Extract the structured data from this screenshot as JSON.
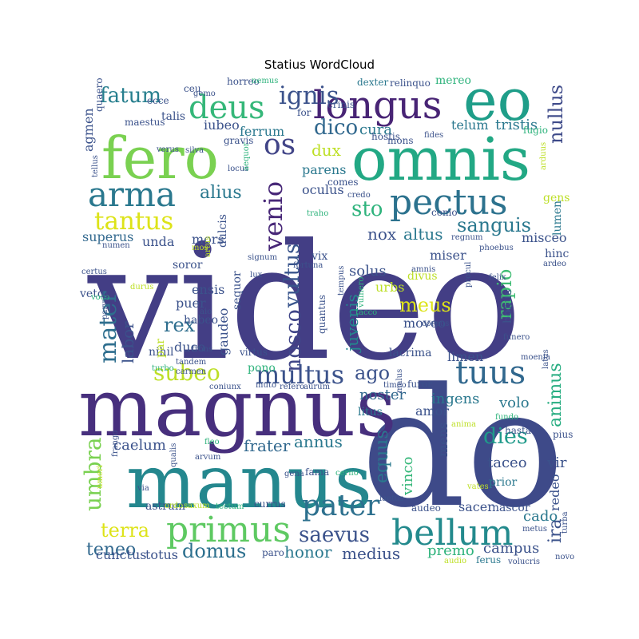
{
  "chart_data": {
    "type": "wordcloud",
    "title": "Statius WordCloud",
    "colormap": "viridis",
    "words": [
      {
        "text": "video",
        "size": 1.0,
        "color": "#433E85"
      },
      {
        "text": "do",
        "size": 0.98,
        "color": "#3E4A89"
      },
      {
        "text": "magnus",
        "size": 0.62,
        "color": "#472F7D"
      },
      {
        "text": "manus",
        "size": 0.58,
        "color": "#24878E"
      },
      {
        "text": "omnis",
        "size": 0.42,
        "color": "#22A884"
      },
      {
        "text": "fero",
        "size": 0.41,
        "color": "#7AD151"
      },
      {
        "text": "eo",
        "size": 0.38,
        "color": "#1F9E89"
      },
      {
        "text": "longus",
        "size": 0.27,
        "color": "#482475"
      },
      {
        "text": "pectus",
        "size": 0.25,
        "color": "#2C728E"
      },
      {
        "text": "primus",
        "size": 0.25,
        "color": "#5EC962"
      },
      {
        "text": "bellum",
        "size": 0.25,
        "color": "#238A8D"
      },
      {
        "text": "arma",
        "size": 0.24,
        "color": "#2A788E"
      },
      {
        "text": "deus",
        "size": 0.23,
        "color": "#35B779"
      },
      {
        "text": "tuus",
        "size": 0.22,
        "color": "#31688E"
      },
      {
        "text": "pater",
        "size": 0.2,
        "color": "#2D708E"
      },
      {
        "text": "multus",
        "size": 0.18,
        "color": "#3B528B"
      },
      {
        "text": "os",
        "size": 0.18,
        "color": "#414487"
      },
      {
        "text": "venio",
        "size": 0.18,
        "color": "#482878"
      },
      {
        "text": "ignis",
        "size": 0.17,
        "color": "#3B528B"
      },
      {
        "text": "mater",
        "size": 0.17,
        "color": "#2E6E8E"
      },
      {
        "text": "tantus",
        "size": 0.17,
        "color": "#DDE318"
      },
      {
        "text": "umbra",
        "size": 0.16,
        "color": "#7AD151"
      },
      {
        "text": "subeo",
        "size": 0.16,
        "color": "#BDDF26"
      },
      {
        "text": "vultus",
        "size": 0.15,
        "color": "#39558C"
      },
      {
        "text": "nosco",
        "size": 0.15,
        "color": "#404688"
      },
      {
        "text": "saevus",
        "size": 0.15,
        "color": "#3B528B"
      },
      {
        "text": "dies",
        "size": 0.15,
        "color": "#1F9A8A"
      },
      {
        "text": "sanguis",
        "size": 0.14,
        "color": "#2A788E"
      },
      {
        "text": "fatum",
        "size": 0.14,
        "color": "#277F8E"
      },
      {
        "text": "domus",
        "size": 0.14,
        "color": "#2D708E"
      },
      {
        "text": "terra",
        "size": 0.14,
        "color": "#DDE318"
      },
      {
        "text": "nullus",
        "size": 0.13,
        "color": "#3E4A89"
      },
      {
        "text": "meus",
        "size": 0.13,
        "color": "#DDE318"
      },
      {
        "text": "rapio",
        "size": 0.13,
        "color": "#3FBC73"
      },
      {
        "text": "ago",
        "size": 0.13,
        "color": "#3B528B"
      },
      {
        "text": "animus",
        "size": 0.13,
        "color": "#27AD81"
      },
      {
        "text": "equus",
        "size": 0.13,
        "color": "#2A788E"
      },
      {
        "text": "rex",
        "size": 0.13,
        "color": "#2E6E8E"
      },
      {
        "text": "teneo",
        "size": 0.13,
        "color": "#31688E"
      },
      {
        "text": "labor",
        "size": 0.12,
        "color": "#3B528B"
      },
      {
        "text": "sto",
        "size": 0.12,
        "color": "#2EB37C"
      },
      {
        "text": "dico",
        "size": 0.12,
        "color": "#31688E"
      },
      {
        "text": "annus",
        "size": 0.12,
        "color": "#2A788E"
      },
      {
        "text": "nox",
        "size": 0.11,
        "color": "#3B528B"
      },
      {
        "text": "altus",
        "size": 0.11,
        "color": "#2A788E"
      },
      {
        "text": "ira",
        "size": 0.11,
        "color": "#3B528B"
      },
      {
        "text": "dux",
        "size": 0.1,
        "color": "#BDDF26"
      },
      {
        "text": "alius",
        "size": 0.1,
        "color": "#2A788E"
      },
      {
        "text": "juvenis",
        "size": 0.1,
        "color": "#24878E"
      },
      {
        "text": "vinco",
        "size": 0.1,
        "color": "#35B779"
      },
      {
        "text": "medius",
        "size": 0.09,
        "color": "#3B528B"
      },
      {
        "text": "honor",
        "size": 0.09,
        "color": "#2A788E"
      },
      {
        "text": "vir",
        "size": 0.09,
        "color": "#3B528B"
      },
      {
        "text": "cura",
        "size": 0.09,
        "color": "#2A788E"
      },
      {
        "text": "volo",
        "size": 0.09,
        "color": "#2A788E"
      },
      {
        "text": "ingens",
        "size": 0.09,
        "color": "#2A788E"
      },
      {
        "text": "noster",
        "size": 0.09,
        "color": "#31688E"
      },
      {
        "text": "frater",
        "size": 0.09,
        "color": "#31688E"
      },
      {
        "text": "taceo",
        "size": 0.09,
        "color": "#3B528B"
      },
      {
        "text": "cado",
        "size": 0.09,
        "color": "#2A788E"
      },
      {
        "text": "caelum",
        "size": 0.09,
        "color": "#3B528B"
      },
      {
        "text": "solus",
        "size": 0.09,
        "color": "#3B528B"
      },
      {
        "text": "mens",
        "size": 0.08,
        "color": "#3B528B"
      },
      {
        "text": "campus",
        "size": 0.08,
        "color": "#3B528B"
      },
      {
        "text": "misceo",
        "size": 0.08,
        "color": "#3B528B"
      },
      {
        "text": "tristis",
        "size": 0.08,
        "color": "#2A788E"
      },
      {
        "text": "ferrum",
        "size": 0.08,
        "color": "#2A788E"
      },
      {
        "text": "iubeo",
        "size": 0.08,
        "color": "#3B528B"
      },
      {
        "text": "mors",
        "size": 0.08,
        "color": "#3B528B"
      },
      {
        "text": "unda",
        "size": 0.08,
        "color": "#3B528B"
      },
      {
        "text": "superus",
        "size": 0.08,
        "color": "#31688E"
      },
      {
        "text": "telum",
        "size": 0.08,
        "color": "#2A788E"
      },
      {
        "text": "amor",
        "size": 0.08,
        "color": "#3B528B"
      },
      {
        "text": "premo",
        "size": 0.08,
        "color": "#2EB37C"
      },
      {
        "text": "totus",
        "size": 0.08,
        "color": "#3B528B"
      },
      {
        "text": "cunctus",
        "size": 0.08,
        "color": "#3B528B"
      },
      {
        "text": "limen",
        "size": 0.08,
        "color": "#3B528B"
      },
      {
        "text": "moveo",
        "size": 0.08,
        "color": "#3B528B"
      },
      {
        "text": "redeo",
        "size": 0.08,
        "color": "#3B528B"
      },
      {
        "text": "miser",
        "size": 0.08,
        "color": "#3B528B"
      },
      {
        "text": "parens",
        "size": 0.08,
        "color": "#2A788E"
      },
      {
        "text": "oculus",
        "size": 0.07,
        "color": "#3B528B"
      },
      {
        "text": "urbs",
        "size": 0.07,
        "color": "#BDDF26"
      },
      {
        "text": "sacer",
        "size": 0.07,
        "color": "#3B528B"
      },
      {
        "text": "nascor",
        "size": 0.07,
        "color": "#3B528B"
      },
      {
        "text": "duco",
        "size": 0.07,
        "color": "#3B528B"
      },
      {
        "text": "puer",
        "size": 0.07,
        "color": "#3B528B"
      },
      {
        "text": "ensis",
        "size": 0.07,
        "color": "#3B528B"
      },
      {
        "text": "gaudeo",
        "size": 0.07,
        "color": "#3B528B"
      },
      {
        "text": "sequor",
        "size": 0.07,
        "color": "#3B528B"
      },
      {
        "text": "agmen",
        "size": 0.07,
        "color": "#3B528B"
      },
      {
        "text": "talis",
        "size": 0.07,
        "color": "#3B528B"
      },
      {
        "text": "gens",
        "size": 0.07,
        "color": "#BDDF26"
      },
      {
        "text": "hinc",
        "size": 0.07,
        "color": "#3B528B"
      },
      {
        "text": "nihil",
        "size": 0.07,
        "color": "#3B528B"
      },
      {
        "text": "lacrima",
        "size": 0.06,
        "color": "#3B528B"
      },
      {
        "text": "par",
        "size": 0.06,
        "color": "#BDDF26"
      },
      {
        "text": "litus",
        "size": 0.06,
        "color": "#2A788E"
      },
      {
        "text": "bonus",
        "size": 0.06,
        "color": "#3B528B"
      },
      {
        "text": "divus",
        "size": 0.06,
        "color": "#BDDF26"
      },
      {
        "text": "vix",
        "size": 0.06,
        "color": "#3B528B"
      },
      {
        "text": "mereo",
        "size": 0.06,
        "color": "#2EB37C"
      },
      {
        "text": "comes",
        "size": 0.06,
        "color": "#3B528B"
      },
      {
        "text": "soror",
        "size": 0.06,
        "color": "#3B528B"
      },
      {
        "text": "veto",
        "size": 0.06,
        "color": "#3B528B"
      },
      {
        "text": "pono",
        "size": 0.06,
        "color": "#2EB37C"
      },
      {
        "text": "prior",
        "size": 0.06,
        "color": "#2A788E"
      },
      {
        "text": "paro",
        "size": 0.06,
        "color": "#3B528B"
      },
      {
        "text": "maestus",
        "size": 0.06,
        "color": "#3B528B"
      },
      {
        "text": "dulcis",
        "size": 0.06,
        "color": "#3B528B"
      },
      {
        "text": "habeo",
        "size": 0.06,
        "color": "#3B528B"
      },
      {
        "text": "crinis",
        "size": 0.06,
        "color": "#3B528B"
      },
      {
        "text": "lumen",
        "size": 0.05,
        "color": "#2A788E"
      },
      {
        "text": "mons",
        "size": 0.05,
        "color": "#3B528B"
      },
      {
        "text": "ceu",
        "size": 0.05,
        "color": "#3B528B"
      },
      {
        "text": "fugio",
        "size": 0.05,
        "color": "#2EB37C"
      },
      {
        "text": "relinquo",
        "size": 0.05,
        "color": "#3B528B"
      },
      {
        "text": "hasta",
        "size": 0.05,
        "color": "#3B528B"
      },
      {
        "text": "furor",
        "size": 0.05,
        "color": "#3B528B"
      },
      {
        "text": "audeo",
        "size": 0.05,
        "color": "#3B528B"
      },
      {
        "text": "currus",
        "size": 0.05,
        "color": "#3B528B"
      },
      {
        "text": "fama",
        "size": 0.05,
        "color": "#3B528B"
      },
      {
        "text": "virtus",
        "size": 0.05,
        "color": "#3B528B"
      },
      {
        "text": "como",
        "size": 0.05,
        "color": "#3B528B"
      },
      {
        "text": "pius",
        "size": 0.05,
        "color": "#3B528B"
      },
      {
        "text": "hostis",
        "size": 0.05,
        "color": "#3B528B"
      },
      {
        "text": "gravis",
        "size": 0.05,
        "color": "#3B528B"
      },
      {
        "text": "horreo",
        "size": 0.05,
        "color": "#3B528B"
      },
      {
        "text": "dexter",
        "size": 0.05,
        "color": "#2A788E"
      },
      {
        "text": "quaero",
        "size": 0.05,
        "color": "#3B528B"
      },
      {
        "text": "for",
        "size": 0.05,
        "color": "#3B528B"
      },
      {
        "text": "ecce",
        "size": 0.05,
        "color": "#3B528B"
      },
      {
        "text": "gemo",
        "size": 0.05,
        "color": "#3B528B"
      },
      {
        "text": "nemus",
        "size": 0.05,
        "color": "#2EB37C"
      },
      {
        "text": "fides",
        "size": 0.05,
        "color": "#3B528B"
      },
      {
        "text": "tellus",
        "size": 0.05,
        "color": "#3B528B"
      },
      {
        "text": "verus",
        "size": 0.05,
        "color": "#3B528B"
      },
      {
        "text": "silva",
        "size": 0.05,
        "color": "#3B528B"
      },
      {
        "text": "locus",
        "size": 0.05,
        "color": "#3B528B"
      },
      {
        "text": "aequor",
        "size": 0.05,
        "color": "#2EB37C"
      },
      {
        "text": "credo",
        "size": 0.05,
        "color": "#3B528B"
      },
      {
        "text": "traho",
        "size": 0.05,
        "color": "#2EB37C"
      },
      {
        "text": "arduus",
        "size": 0.05,
        "color": "#BDDF26"
      },
      {
        "text": "regnum",
        "size": 0.05,
        "color": "#3B528B"
      },
      {
        "text": "phoebus",
        "size": 0.05,
        "color": "#3B528B"
      },
      {
        "text": "ardeo",
        "size": 0.05,
        "color": "#3B528B"
      },
      {
        "text": "numen",
        "size": 0.05,
        "color": "#3B528B"
      },
      {
        "text": "signum",
        "size": 0.05,
        "color": "#3B528B"
      },
      {
        "text": "fortuna",
        "size": 0.05,
        "color": "#3B528B"
      },
      {
        "text": "amnis",
        "size": 0.05,
        "color": "#3B528B"
      },
      {
        "text": "certus",
        "size": 0.05,
        "color": "#3B528B"
      },
      {
        "text": "lux",
        "size": 0.05,
        "color": "#3B528B"
      },
      {
        "text": "durus",
        "size": 0.05,
        "color": "#BDDF26"
      },
      {
        "text": "voco",
        "size": 0.05,
        "color": "#2EB37C"
      },
      {
        "text": "parvus",
        "size": 0.05,
        "color": "#3B528B"
      },
      {
        "text": "procul",
        "size": 0.05,
        "color": "#3B528B"
      },
      {
        "text": "felix",
        "size": 0.05,
        "color": "#3B528B"
      },
      {
        "text": "tempus",
        "size": 0.05,
        "color": "#3B528B"
      },
      {
        "text": "vulnero",
        "size": 0.05,
        "color": "#2EB37C"
      },
      {
        "text": "quantus",
        "size": 0.05,
        "color": "#3B528B"
      },
      {
        "text": "corpus",
        "size": 0.05,
        "color": "#3B528B"
      },
      {
        "text": "aio",
        "size": 0.05,
        "color": "#3B528B"
      },
      {
        "text": "frons",
        "size": 0.05,
        "color": "#3B528B"
      },
      {
        "text": "tacco",
        "size": 0.05,
        "color": "#2EB37C"
      },
      {
        "text": "funero",
        "size": 0.05,
        "color": "#3B528B"
      },
      {
        "text": "tandem",
        "size": 0.05,
        "color": "#3B528B"
      },
      {
        "text": "carmen",
        "size": 0.05,
        "color": "#3B528B"
      },
      {
        "text": "turbo",
        "size": 0.05,
        "color": "#2EB37C"
      },
      {
        "text": "coniunx",
        "size": 0.05,
        "color": "#3B528B"
      },
      {
        "text": "muto",
        "size": 0.05,
        "color": "#3B528B"
      },
      {
        "text": "refero",
        "size": 0.05,
        "color": "#3B528B"
      },
      {
        "text": "aurum",
        "size": 0.05,
        "color": "#3B528B"
      },
      {
        "text": "timeo",
        "size": 0.05,
        "color": "#3B528B"
      },
      {
        "text": "malus",
        "size": 0.05,
        "color": "#3B528B"
      },
      {
        "text": "moenia",
        "size": 0.05,
        "color": "#3B528B"
      },
      {
        "text": "latus",
        "size": 0.05,
        "color": "#3B528B"
      },
      {
        "text": "fundo",
        "size": 0.05,
        "color": "#2EB37C"
      },
      {
        "text": "anima",
        "size": 0.05,
        "color": "#BDDF26"
      },
      {
        "text": "qualis",
        "size": 0.05,
        "color": "#3B528B"
      },
      {
        "text": "arvum",
        "size": 0.05,
        "color": "#3B528B"
      },
      {
        "text": "frango",
        "size": 0.05,
        "color": "#3B528B"
      },
      {
        "text": "fleo",
        "size": 0.05,
        "color": "#2EB37C"
      },
      {
        "text": "gena",
        "size": 0.05,
        "color": "#3B528B"
      },
      {
        "text": "cerno",
        "size": 0.05,
        "color": "#2EB37C"
      },
      {
        "text": "vates",
        "size": 0.05,
        "color": "#BDDF26"
      },
      {
        "text": "astrum",
        "size": 0.06,
        "color": "#3B528B"
      },
      {
        "text": "via",
        "size": 0.05,
        "color": "#3B528B"
      },
      {
        "text": "ordo",
        "size": 0.05,
        "color": "#BDDF26"
      },
      {
        "text": "saxum",
        "size": 0.05,
        "color": "#BDDF26"
      },
      {
        "text": "tectum",
        "size": 0.05,
        "color": "#2EB37C"
      },
      {
        "text": "laetus",
        "size": 0.05,
        "color": "#3B528B"
      },
      {
        "text": "metus",
        "size": 0.05,
        "color": "#3B528B"
      },
      {
        "text": "turba",
        "size": 0.05,
        "color": "#3B528B"
      },
      {
        "text": "novo",
        "size": 0.05,
        "color": "#3B528B"
      },
      {
        "text": "volucris",
        "size": 0.05,
        "color": "#3B528B"
      },
      {
        "text": "ferus",
        "size": 0.05,
        "color": "#2A788E"
      },
      {
        "text": "audio",
        "size": 0.05,
        "color": "#BDDF26"
      },
      {
        "text": "mos",
        "size": 0.05,
        "color": "#BDDF26"
      },
      {
        "text": "artus",
        "size": 0.05,
        "color": "#BDDF26"
      },
      {
        "text": "umeri",
        "size": 0.05,
        "color": "#BDDF26"
      }
    ]
  }
}
